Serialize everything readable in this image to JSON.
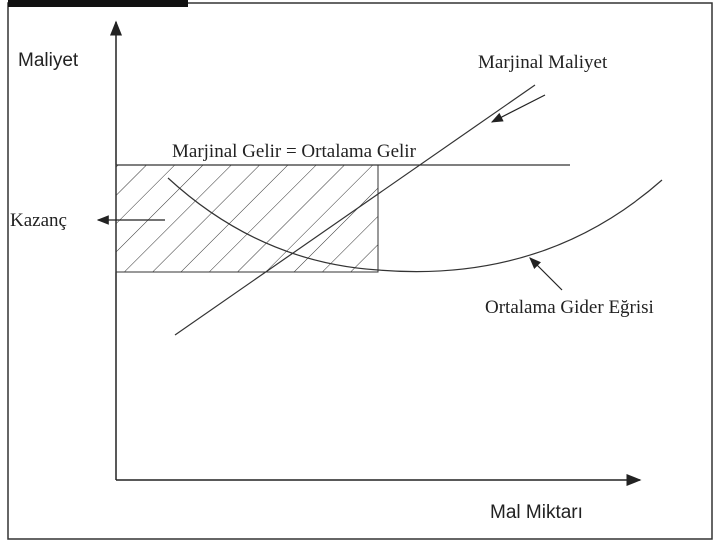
{
  "labels": {
    "y_axis": "Maliyet",
    "x_axis": "Mal Miktarı",
    "mc": "Marjinal Maliyet",
    "mr": "Marjinal Gelir = Ortalama Gelir",
    "profit": "Kazanç",
    "ac": "Ortalama Gider Eğrisi"
  }
}
